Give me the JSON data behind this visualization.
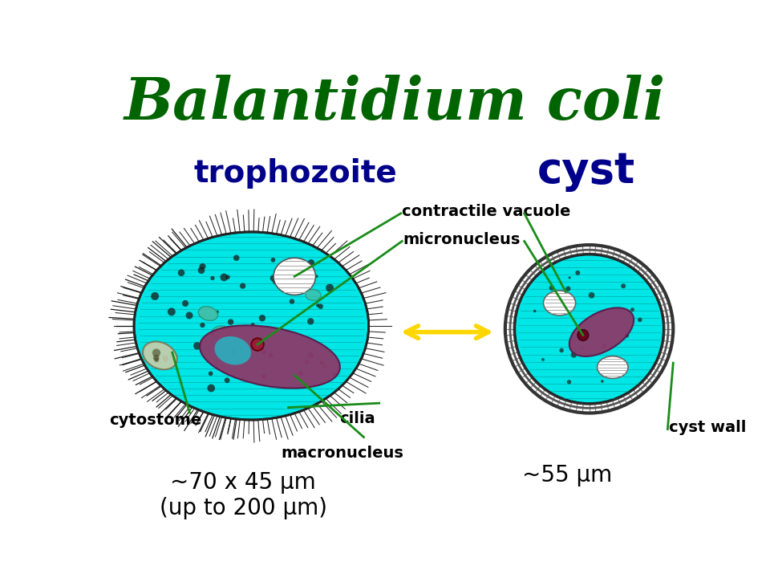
{
  "title": "Balantidium coli",
  "title_color": "#006400",
  "title_fontsize": 52,
  "bg_color": "#ffffff",
  "trophozoite_label": "trophozoite",
  "cyst_label": "cyst",
  "label_color": "#00008B",
  "troph_label_fontsize": 28,
  "cyst_label_fontsize": 38,
  "cyan_color": "#00E5E5",
  "macronucleus_color": "#8B3A6B",
  "annotation_fontsize": 14,
  "annotation_fontweight": "bold",
  "green_line_color": "#1a8c1a",
  "arrow_color": "#FFD700",
  "size_label_troph": "~70 x 45 μm\n(up to 200 μm)",
  "size_label_cyst": "~55 μm",
  "size_fontsize": 20
}
